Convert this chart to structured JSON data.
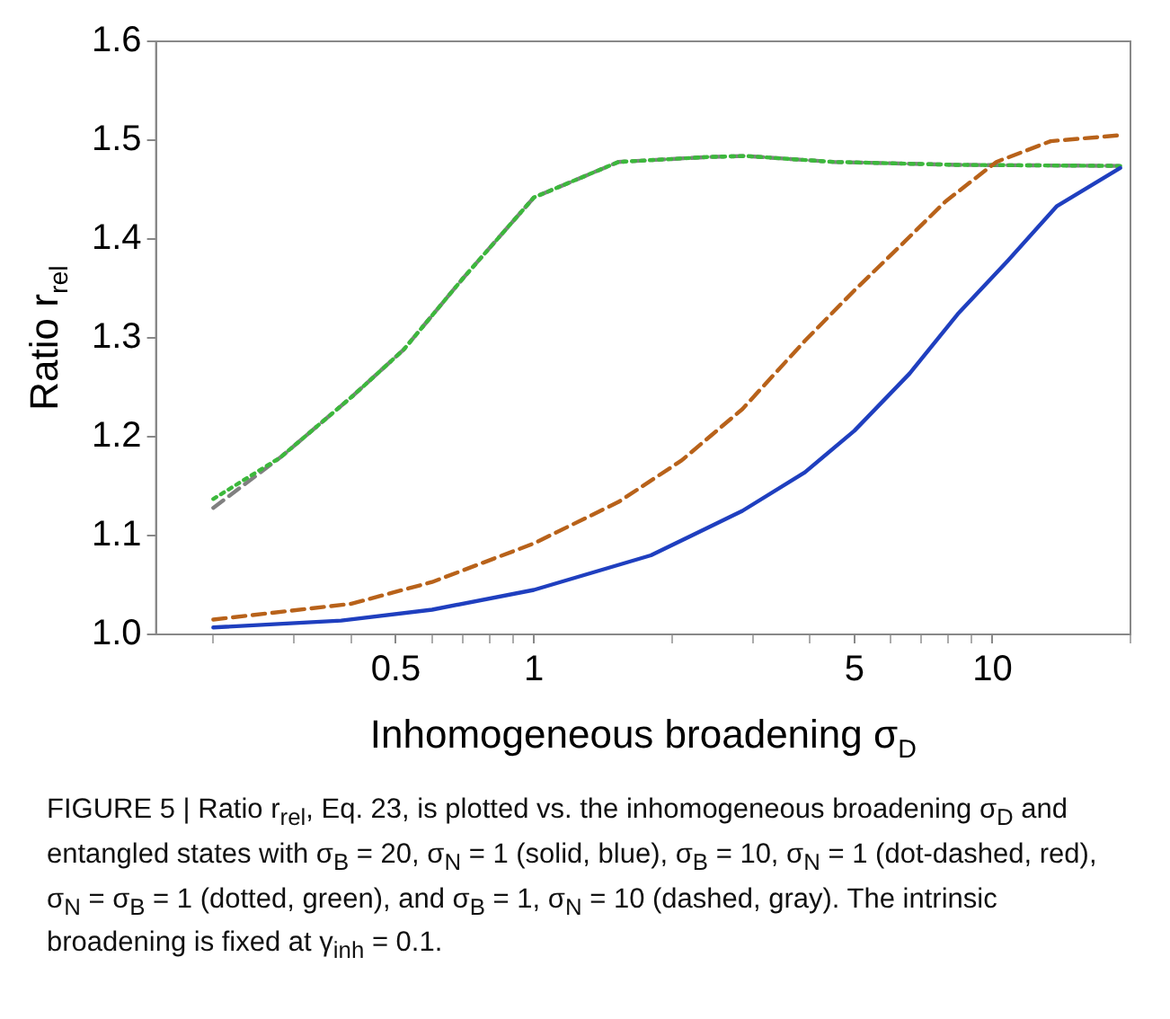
{
  "chart_data": {
    "type": "line",
    "xlabel": "Inhomogeneous broadening σ$_{D}$",
    "ylabel": "Ratio r$_{rel}$",
    "annotations": [
      "FIGURE 5 | Ratio r$_{rel}$, Eq. 23, is plotted vs. the inhomogeneous broadening σ$_{D}$ and entangled states with σ$_{B}$ = 20, σ$_{N}$ = 1 (solid, blue), σ$_{B}$ = 10, σ$_{N}$ = 1 (dot-dashed, red), σ$_{N}$ = σ$_{B}$ = 1 (dotted, green), and σ$_{B}$ = 1, σ$_{N}$ = 10 (dashed, gray). The intrinsic broadening is fixed at γ$_{inh}$ = 0.1."
    ],
    "log": "x",
    "grid": false,
    "legend": false,
    "marker": "none",
    "xlim": [
      0.15,
      20
    ],
    "xticks": [
      {
        "value": 0.2,
        "label": null
      },
      {
        "value": 0.3,
        "label": null
      },
      {
        "value": 0.4,
        "label": null
      },
      0.5,
      {
        "value": 0.6,
        "label": null
      },
      {
        "value": 0.7,
        "label": null
      },
      {
        "value": 0.8,
        "label": null
      },
      {
        "value": 0.9,
        "label": null
      },
      1,
      {
        "value": 2,
        "label": null
      },
      {
        "value": 3,
        "label": null
      },
      {
        "value": 4,
        "label": null
      },
      5,
      {
        "value": 6,
        "label": null
      },
      {
        "value": 7,
        "label": null
      },
      {
        "value": 8,
        "label": null
      },
      {
        "value": 9,
        "label": null
      },
      10,
      {
        "value": 20,
        "label": null
      }
    ],
    "ylim": [
      1.0,
      1.6
    ],
    "yticks": [
      {
        "value": 1.0,
        "label": "1.0"
      },
      1.1,
      1.2,
      1.3,
      1.4,
      1.5,
      1.6
    ],
    "series": [
      {
        "color": "#1f3fbf",
        "line_style": "solid",
        "x": [
          0.2,
          0.38,
          0.6,
          1,
          1.8,
          2.85,
          3.9,
          5,
          6.6,
          8.4,
          10.8,
          13.8,
          19
        ],
        "values": [
          1.007,
          1.014,
          1.025,
          1.045,
          1.08,
          1.125,
          1.164,
          1.206,
          1.264,
          1.324,
          1.378,
          1.433,
          1.472
        ]
      },
      {
        "color": "#b8621a",
        "line_style": "dashed",
        "x": [
          0.2,
          0.4,
          0.6,
          1,
          1.53,
          2.1,
          2.85,
          3.9,
          5,
          6.2,
          7.9,
          10.2,
          13.4,
          19
        ],
        "values": [
          1.015,
          1.031,
          1.053,
          1.092,
          1.134,
          1.176,
          1.228,
          1.297,
          1.348,
          1.39,
          1.438,
          1.478,
          1.499,
          1.505
        ]
      },
      {
        "color": "#3cb83c",
        "line_style": "dotted",
        "x": [
          0.2,
          0.28,
          0.4,
          0.52,
          0.7,
          1,
          1.53,
          2.4,
          2.9,
          4.5,
          8.4,
          19
        ],
        "values": [
          1.137,
          1.179,
          1.24,
          1.288,
          1.36,
          1.442,
          1.478,
          1.483,
          1.484,
          1.478,
          1.475,
          1.474
        ]
      },
      {
        "color": "#808080",
        "line_style": "dashed",
        "x": [
          0.2,
          0.28,
          0.4,
          0.52,
          0.7,
          1,
          1.53,
          2.4,
          2.9,
          4.5,
          8.4,
          19
        ],
        "values": [
          1.128,
          1.179,
          1.24,
          1.288,
          1.36,
          1.442,
          1.478,
          1.483,
          1.484,
          1.478,
          1.475,
          1.474
        ]
      }
    ]
  }
}
